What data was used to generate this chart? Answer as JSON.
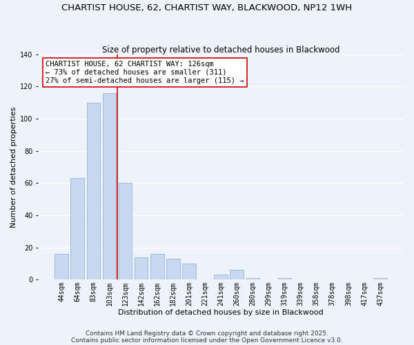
{
  "title1": "CHARTIST HOUSE, 62, CHARTIST WAY, BLACKWOOD, NP12 1WH",
  "title2": "Size of property relative to detached houses in Blackwood",
  "xlabel": "Distribution of detached houses by size in Blackwood",
  "ylabel": "Number of detached properties",
  "bar_labels": [
    "44sqm",
    "64sqm",
    "83sqm",
    "103sqm",
    "123sqm",
    "142sqm",
    "162sqm",
    "182sqm",
    "201sqm",
    "221sqm",
    "241sqm",
    "260sqm",
    "280sqm",
    "299sqm",
    "319sqm",
    "339sqm",
    "358sqm",
    "378sqm",
    "398sqm",
    "417sqm",
    "437sqm"
  ],
  "bar_heights": [
    16,
    63,
    110,
    116,
    60,
    14,
    16,
    13,
    10,
    0,
    3,
    6,
    1,
    0,
    1,
    0,
    0,
    0,
    0,
    0,
    1
  ],
  "bar_color": "#c8d8f0",
  "bar_edge_color": "#9bbcd8",
  "vline_color": "#cc0000",
  "ylim": [
    0,
    140
  ],
  "yticks": [
    0,
    20,
    40,
    60,
    80,
    100,
    120,
    140
  ],
  "annotation_title": "CHARTIST HOUSE, 62 CHARTIST WAY: 126sqm",
  "annotation_line1": "← 73% of detached houses are smaller (311)",
  "annotation_line2": "27% of semi-detached houses are larger (115) →",
  "annotation_box_color": "#ffffff",
  "annotation_border_color": "#cc0000",
  "footer1": "Contains HM Land Registry data © Crown copyright and database right 2025.",
  "footer2": "Contains public sector information licensed under the Open Government Licence v3.0.",
  "background_color": "#eef2fa",
  "grid_color": "#ffffff",
  "title_fontsize": 9.5,
  "subtitle_fontsize": 8.5,
  "axis_label_fontsize": 8,
  "tick_fontsize": 7,
  "annotation_fontsize": 7.5,
  "footer_fontsize": 6.5
}
